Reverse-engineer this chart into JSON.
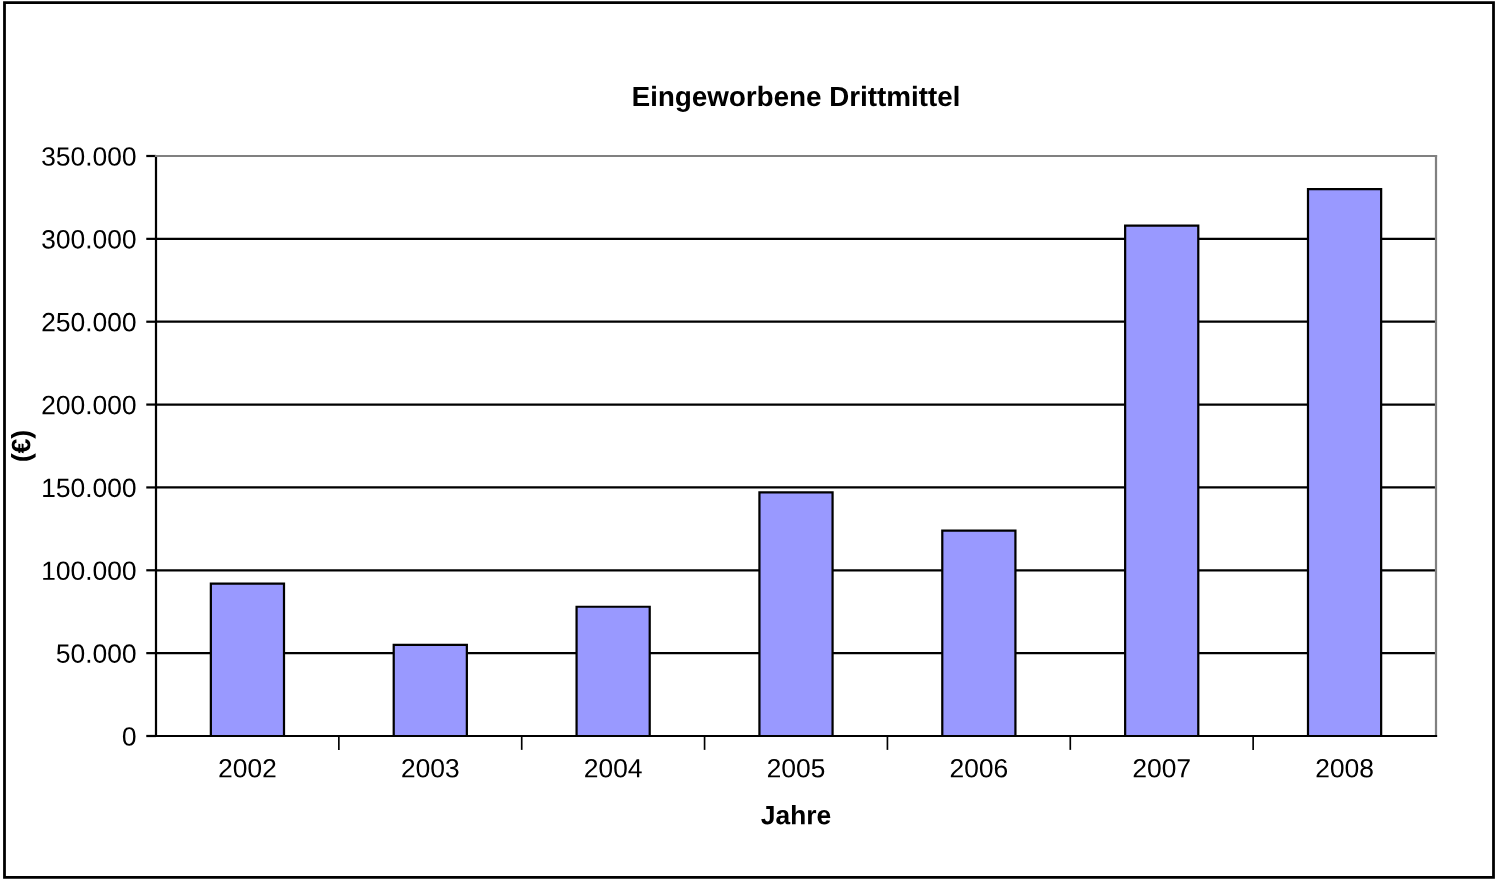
{
  "chart_data": {
    "type": "bar",
    "title": "Eingeworbene Drittmittel",
    "xlabel": "Jahre",
    "ylabel": "(€)",
    "categories": [
      "2002",
      "2003",
      "2004",
      "2005",
      "2006",
      "2007",
      "2008"
    ],
    "values": [
      92000,
      55000,
      78000,
      147000,
      124000,
      308000,
      330000
    ],
    "color": "#9999ff",
    "ylim": [
      0,
      350000
    ],
    "yticks": [
      0,
      {
        "value": 50000,
        "label": "50.000"
      },
      {
        "value": 100000,
        "label": "100.000"
      },
      {
        "value": 150000,
        "label": "150.000"
      },
      {
        "value": 200000,
        "label": "200.000"
      },
      {
        "value": 250000,
        "label": "250.000"
      },
      {
        "value": 300000,
        "label": "300.000"
      },
      {
        "value": 350000,
        "label": "350.000"
      }
    ],
    "grid": "y",
    "legend": false
  }
}
